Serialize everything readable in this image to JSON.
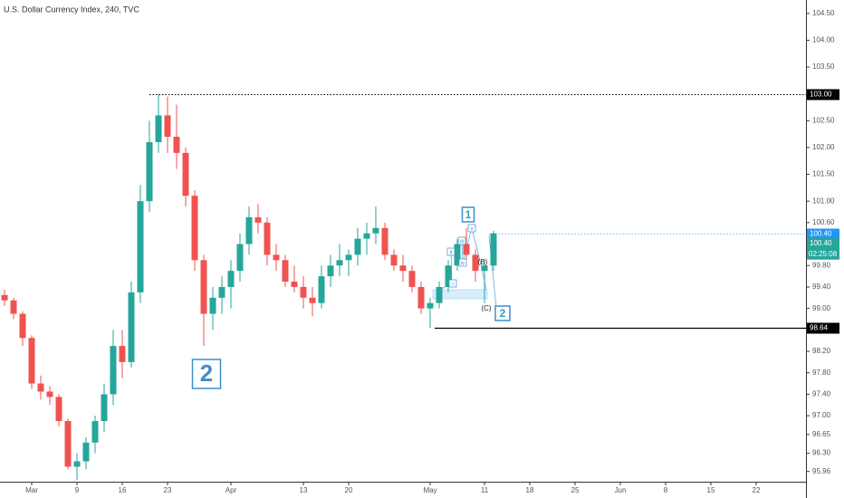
{
  "chart_data": {
    "type": "candlestick",
    "title": "U.S. Dollar Currency Index, 240, TVC",
    "x": [
      0,
      1,
      2,
      3,
      4,
      5,
      6,
      7,
      8,
      9,
      10,
      11,
      12,
      13,
      14,
      15,
      16,
      17,
      18,
      19,
      20,
      21,
      22,
      23,
      24,
      25,
      26,
      27,
      28,
      29,
      30,
      31,
      32,
      33,
      34,
      35,
      36,
      37,
      38,
      39,
      40,
      41,
      42,
      43,
      44,
      45,
      46,
      47,
      48,
      49,
      50,
      51,
      52,
      53,
      54
    ],
    "open": [
      99.25,
      99.15,
      98.9,
      98.45,
      97.6,
      97.45,
      97.35,
      96.9,
      96.05,
      96.15,
      96.5,
      96.9,
      97.4,
      98.3,
      98.0,
      99.3,
      101.0,
      102.1,
      102.6,
      102.2,
      101.9,
      101.1,
      99.9,
      98.9,
      99.2,
      99.4,
      99.7,
      100.2,
      100.7,
      100.6,
      100.0,
      99.9,
      99.5,
      99.4,
      99.2,
      99.1,
      99.6,
      99.8,
      99.9,
      100.0,
      100.3,
      100.4,
      100.5,
      100.0,
      99.8,
      99.7,
      99.4,
      99.0,
      99.1,
      99.4,
      99.8,
      100.2,
      100.0,
      99.7,
      99.8
    ],
    "high": [
      99.35,
      99.2,
      98.95,
      98.5,
      97.75,
      97.55,
      97.4,
      96.95,
      96.3,
      96.6,
      97.0,
      97.6,
      98.6,
      98.6,
      99.5,
      101.3,
      102.5,
      102.99,
      102.95,
      102.8,
      102.0,
      101.2,
      100.0,
      99.4,
      99.6,
      99.9,
      100.4,
      100.9,
      100.95,
      100.7,
      100.2,
      100.0,
      99.8,
      99.6,
      99.4,
      99.8,
      100.0,
      100.2,
      100.1,
      100.5,
      100.6,
      100.9,
      100.6,
      100.1,
      100.0,
      99.8,
      99.5,
      99.2,
      99.5,
      99.9,
      100.3,
      100.5,
      100.1,
      99.9,
      100.45
    ],
    "low": [
      99.05,
      98.8,
      98.3,
      97.5,
      97.3,
      97.2,
      96.8,
      96.0,
      95.8,
      96.0,
      96.3,
      96.7,
      97.2,
      97.7,
      97.9,
      99.1,
      100.8,
      101.9,
      101.9,
      101.6,
      100.9,
      99.7,
      98.3,
      98.6,
      98.9,
      99.0,
      99.5,
      100.0,
      100.4,
      99.8,
      99.7,
      99.4,
      99.3,
      99.0,
      98.85,
      99.0,
      99.4,
      99.6,
      99.6,
      99.8,
      100.0,
      100.2,
      99.9,
      99.7,
      99.5,
      99.3,
      98.9,
      98.64,
      99.0,
      99.3,
      99.7,
      99.9,
      99.5,
      99.1,
      99.7
    ],
    "close": [
      99.15,
      98.9,
      98.45,
      97.6,
      97.45,
      97.35,
      96.9,
      96.05,
      96.15,
      96.5,
      96.9,
      97.4,
      98.3,
      98.0,
      99.3,
      101.0,
      102.1,
      102.6,
      102.2,
      101.9,
      101.1,
      99.9,
      98.9,
      99.2,
      99.4,
      99.7,
      100.2,
      100.7,
      100.6,
      100.0,
      99.9,
      99.5,
      99.4,
      99.2,
      99.1,
      99.6,
      99.8,
      99.9,
      100.0,
      100.3,
      100.4,
      100.5,
      100.0,
      99.8,
      99.7,
      99.4,
      99.0,
      99.1,
      99.4,
      99.8,
      100.2,
      100.0,
      99.7,
      99.8,
      100.4
    ],
    "up_color": "#26a69a",
    "down_color": "#ef5350",
    "xlim": [
      -0.5,
      88.5
    ],
    "xticks": [
      {
        "value": 3,
        "label": "Mar"
      },
      {
        "value": 8,
        "label": "9"
      },
      {
        "value": 13,
        "label": "16"
      },
      {
        "value": 18,
        "label": "23"
      },
      {
        "value": 25,
        "label": "Apr"
      },
      {
        "value": 33,
        "label": "13"
      },
      {
        "value": 38,
        "label": "20"
      },
      {
        "value": 47,
        "label": "May"
      },
      {
        "value": 53,
        "label": "11"
      },
      {
        "value": 58,
        "label": "18"
      },
      {
        "value": 63,
        "label": "25"
      },
      {
        "value": 68,
        "label": "Jun"
      },
      {
        "value": 73,
        "label": "8"
      },
      {
        "value": 78,
        "label": "15"
      },
      {
        "value": 83,
        "label": "22"
      }
    ],
    "ylim": [
      95.77,
      104.75
    ],
    "yticks": [
      {
        "value": 104.5,
        "label": "104.50"
      },
      {
        "value": 104,
        "label": "104.00"
      },
      {
        "value": 103.5,
        "label": "103.50"
      },
      {
        "value": 102.5,
        "label": "102.50"
      },
      {
        "value": 102,
        "label": "102.00"
      },
      {
        "value": 101.5,
        "label": "101.50"
      },
      {
        "value": 101,
        "label": "101.00"
      },
      {
        "value": 100.6,
        "label": "100.60"
      },
      {
        "value": 99.8,
        "label": "99.80"
      },
      {
        "value": 99.4,
        "label": "99.40"
      },
      {
        "value": 99,
        "label": "99.00"
      },
      {
        "value": 98.2,
        "label": "98.20"
      },
      {
        "value": 97.8,
        "label": "97.80"
      },
      {
        "value": 97.4,
        "label": "97.40"
      },
      {
        "value": 97,
        "label": "97.00"
      },
      {
        "value": 96.65,
        "label": "96.65"
      },
      {
        "value": 96.3,
        "label": "96.30"
      },
      {
        "value": 95.96,
        "label": "95.96"
      }
    ],
    "levels": [
      {
        "value": 103,
        "label": "103.00",
        "color": "#000000",
        "style": "dotted"
      },
      {
        "value": 98.64,
        "label": "98.64",
        "color": "#000000",
        "style": "solid"
      },
      {
        "value": 100.4,
        "label": "100.40",
        "color": "#2196f3",
        "style": "dotted"
      }
    ],
    "last_price": {
      "value": 100.4,
      "label": "100.40",
      "color": "#26a69a"
    },
    "countdown": "02:25:08",
    "annotations": [
      "1",
      "2",
      "2",
      "(B)",
      "(C)",
      "i",
      "ii",
      "iii",
      "iv",
      "v"
    ]
  }
}
